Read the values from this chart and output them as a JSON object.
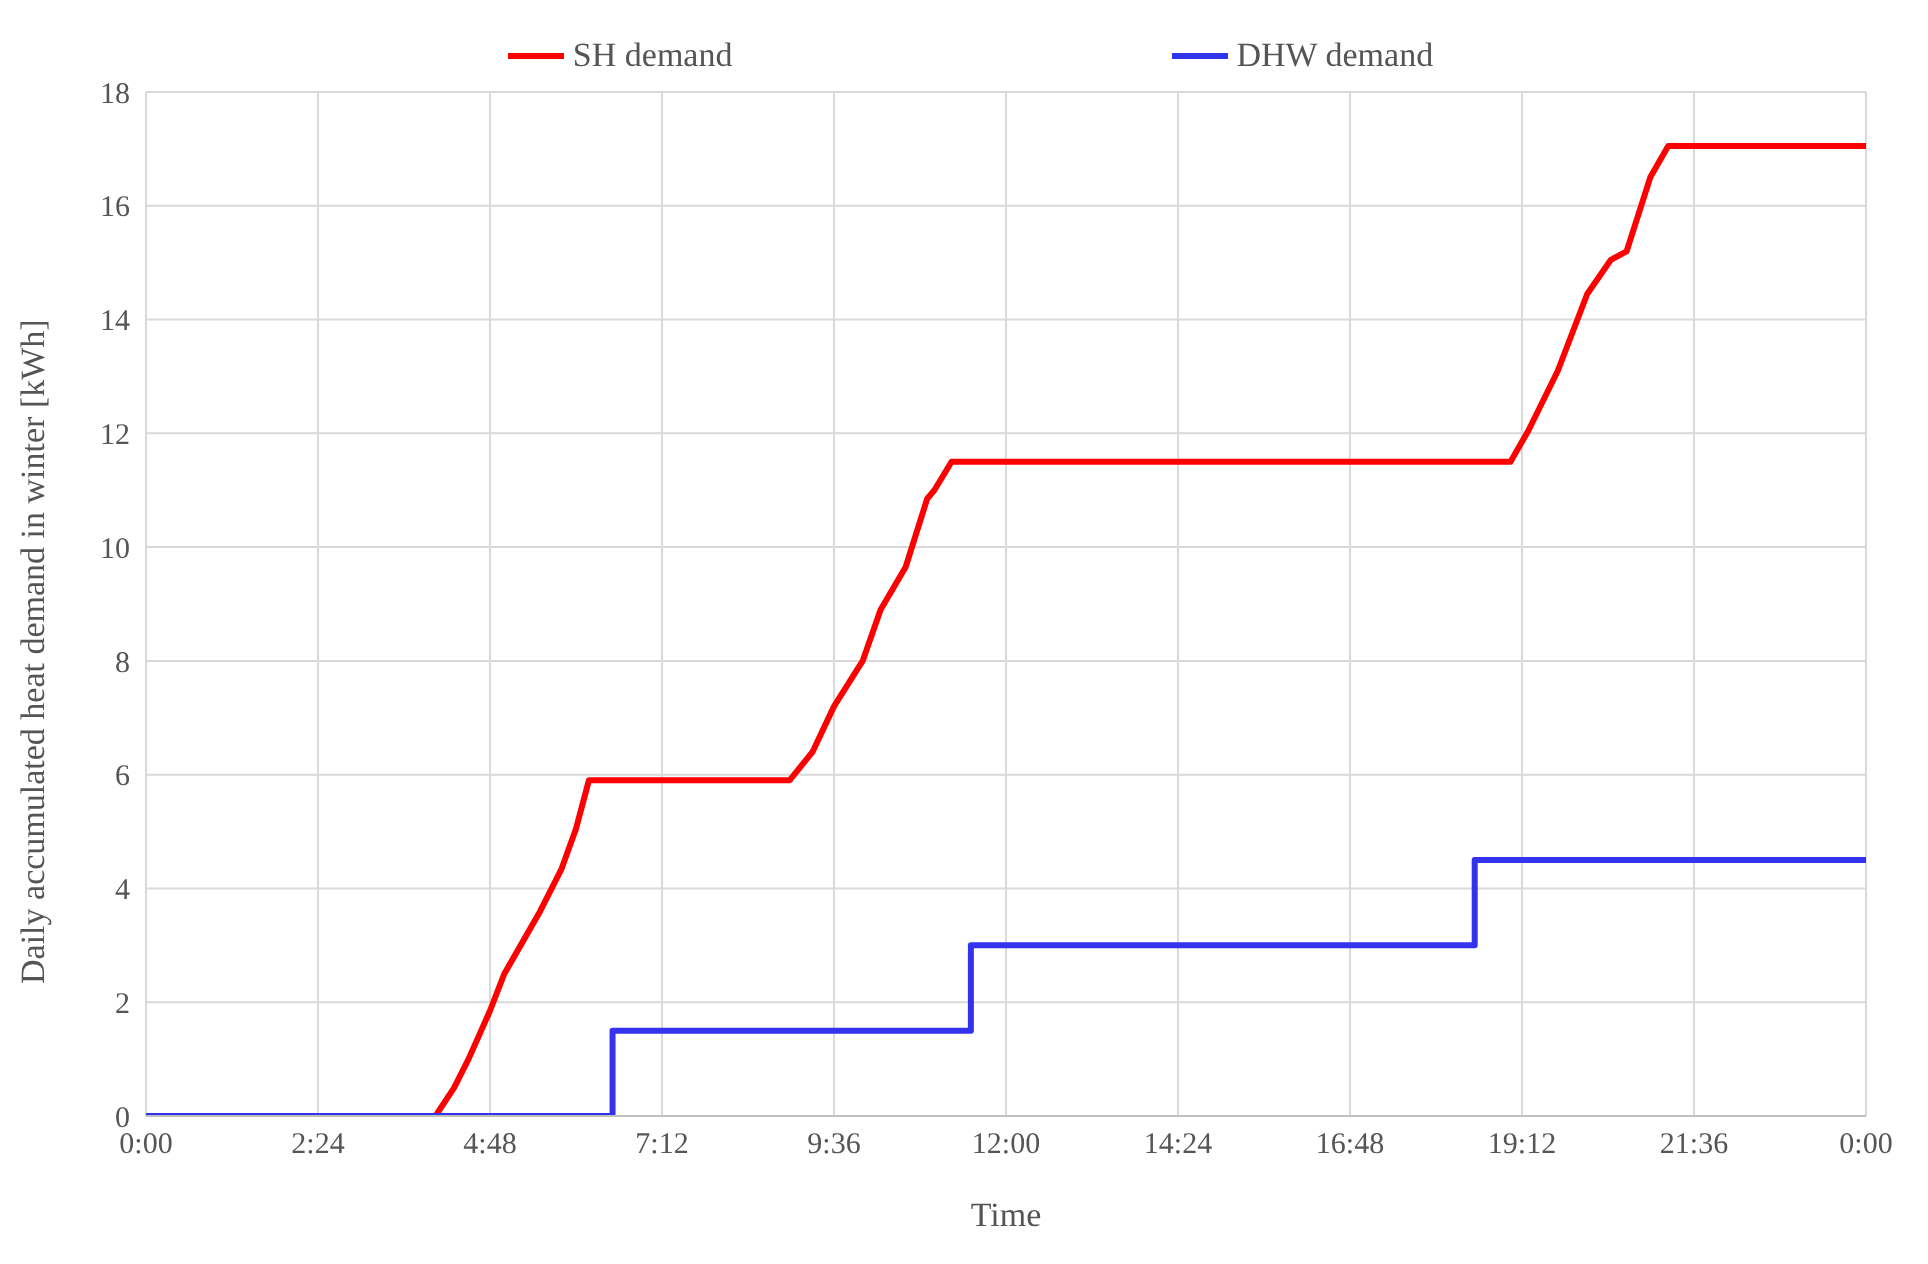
{
  "chart_data": {
    "type": "line",
    "xlabel": "Time",
    "ylabel": "Daily accumulated  heat demand in winter [kWh]",
    "xlim": [
      0,
      24
    ],
    "xticks": [
      {
        "value": 0,
        "label": "0:00"
      },
      {
        "value": 2.4,
        "label": "2:24"
      },
      {
        "value": 4.8,
        "label": "4:48"
      },
      {
        "value": 7.2,
        "label": "7:12"
      },
      {
        "value": 9.6,
        "label": "9:36"
      },
      {
        "value": 12,
        "label": "12:00"
      },
      {
        "value": 14.4,
        "label": "14:24"
      },
      {
        "value": 16.8,
        "label": "16:48"
      },
      {
        "value": 19.2,
        "label": "19:12"
      },
      {
        "value": 21.6,
        "label": "21:36"
      },
      {
        "value": 24,
        "label": "0:00"
      }
    ],
    "ylim": [
      0,
      18
    ],
    "yticks": [
      0,
      2,
      4,
      6,
      8,
      10,
      12,
      14,
      16,
      18
    ],
    "grid": true,
    "legend": "top",
    "marker": "none",
    "line_style": "solid",
    "series": [
      {
        "name": "SH demand",
        "color": "#ff0000",
        "x": [
          0,
          4.04,
          4.3,
          4.5,
          4.8,
          5.0,
          5.5,
          5.8,
          6.0,
          6.18,
          8.98,
          9.3,
          9.6,
          10.0,
          10.25,
          10.6,
          10.9,
          11.0,
          11.24,
          19.04,
          19.29,
          19.7,
          20.11,
          20.44,
          20.66,
          20.99,
          21.24,
          24
        ],
        "values": [
          0,
          0,
          0.5,
          1.0,
          1.85,
          2.5,
          3.6,
          4.35,
          5.05,
          5.9,
          5.9,
          6.4,
          7.2,
          8.0,
          8.9,
          9.65,
          10.85,
          11.0,
          11.5,
          11.5,
          12.05,
          13.1,
          14.45,
          15.05,
          15.2,
          16.5,
          17.05,
          17.05
        ]
      },
      {
        "name": "DHW demand",
        "color": "#3333ee",
        "x": [
          0,
          6.51,
          6.51,
          11.51,
          11.51,
          18.54,
          18.54,
          24
        ],
        "values": [
          0,
          0,
          1.5,
          1.5,
          3.0,
          3.0,
          4.5,
          4.5
        ]
      }
    ]
  }
}
